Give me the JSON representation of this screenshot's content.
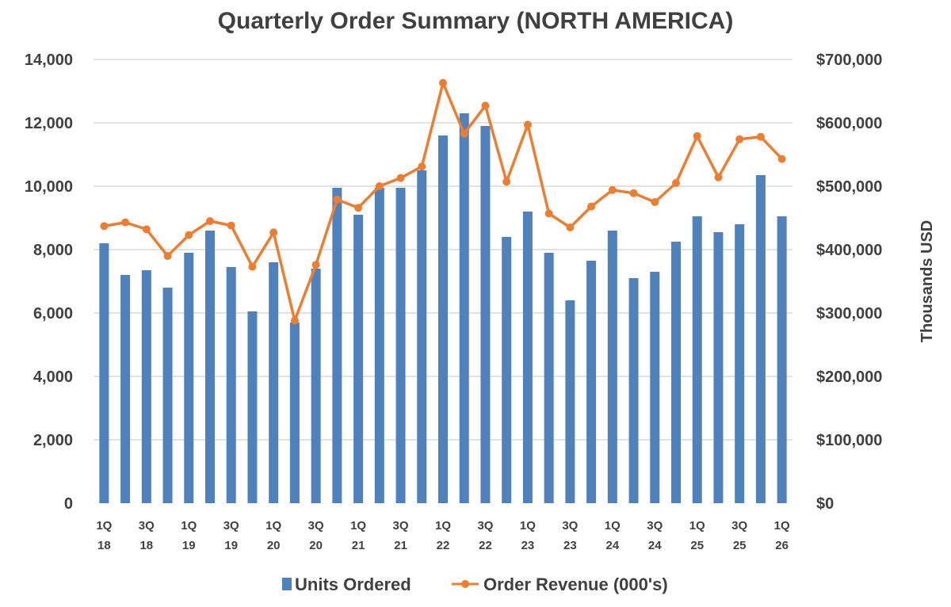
{
  "chart_data": {
    "type": "bar+line",
    "title": "Quarterly Order Summary (NORTH AMERICA)",
    "categories": [
      "1Q 18",
      "2Q 18",
      "3Q 18",
      "4Q 18",
      "1Q 19",
      "2Q 19",
      "3Q 19",
      "4Q 19",
      "1Q 20",
      "2Q 20",
      "3Q 20",
      "4Q 20",
      "1Q 21",
      "2Q 21",
      "3Q 21",
      "4Q 21",
      "1Q 22",
      "2Q 22",
      "3Q 22",
      "4Q 22",
      "1Q 23",
      "2Q 23",
      "3Q 23",
      "4Q 23",
      "1Q 24",
      "2Q 24",
      "3Q 24",
      "4Q 24",
      "1Q 25",
      "2Q 25",
      "3Q 25",
      "4Q 25",
      "1Q 26"
    ],
    "x_tick_labels": [
      {
        "index": 0,
        "line1": "1Q",
        "line2": "18"
      },
      {
        "index": 2,
        "line1": "3Q",
        "line2": "18"
      },
      {
        "index": 4,
        "line1": "1Q",
        "line2": "19"
      },
      {
        "index": 6,
        "line1": "3Q",
        "line2": "19"
      },
      {
        "index": 8,
        "line1": "1Q",
        "line2": "20"
      },
      {
        "index": 10,
        "line1": "3Q",
        "line2": "20"
      },
      {
        "index": 12,
        "line1": "1Q",
        "line2": "21"
      },
      {
        "index": 14,
        "line1": "3Q",
        "line2": "21"
      },
      {
        "index": 16,
        "line1": "1Q",
        "line2": "22"
      },
      {
        "index": 18,
        "line1": "3Q",
        "line2": "22"
      },
      {
        "index": 20,
        "line1": "1Q",
        "line2": "23"
      },
      {
        "index": 22,
        "line1": "3Q",
        "line2": "23"
      },
      {
        "index": 24,
        "line1": "1Q",
        "line2": "24"
      },
      {
        "index": 26,
        "line1": "3Q",
        "line2": "24"
      },
      {
        "index": 28,
        "line1": "1Q",
        "line2": "25"
      },
      {
        "index": 30,
        "line1": "3Q",
        "line2": "25"
      },
      {
        "index": 32,
        "line1": "1Q",
        "line2": "26"
      }
    ],
    "series": [
      {
        "name": "Units Ordered",
        "type": "bar",
        "axis": "left",
        "color": "#4f81bd",
        "values": [
          8200,
          7200,
          7350,
          6800,
          7900,
          8600,
          7450,
          6050,
          7600,
          5700,
          7400,
          9950,
          9100,
          9950,
          9950,
          10500,
          11600,
          12300,
          11900,
          8400,
          9200,
          7900,
          6400,
          7650,
          8600,
          7100,
          7300,
          8250,
          9050,
          8550,
          8800,
          10350,
          9050
        ]
      },
      {
        "name": "Order Revenue (000's)",
        "type": "line",
        "axis": "right",
        "color": "#ed7d31",
        "values": [
          437000,
          443000,
          432000,
          390000,
          423000,
          445000,
          438000,
          373000,
          427000,
          288000,
          376000,
          479000,
          466000,
          500000,
          513000,
          531000,
          663000,
          583000,
          627000,
          507000,
          597000,
          457000,
          435000,
          468000,
          494000,
          489000,
          475000,
          505000,
          579000,
          514000,
          574000,
          578000,
          543000
        ]
      }
    ],
    "y_left": {
      "ylim": [
        0,
        14000
      ],
      "ticks": [
        "0",
        "2,000",
        "4,000",
        "6,000",
        "8,000",
        "10,000",
        "12,000",
        "14,000"
      ]
    },
    "y_right": {
      "ylim": [
        0,
        700000
      ],
      "ticks": [
        "$0",
        "$100,000",
        "$200,000",
        "$300,000",
        "$400,000",
        "$500,000",
        "$600,000",
        "$700,000"
      ],
      "label": "Thousands USD"
    },
    "grid": true,
    "legend": {
      "position": "bottom",
      "items": [
        "Units Ordered",
        "Order Revenue (000's)"
      ]
    }
  }
}
